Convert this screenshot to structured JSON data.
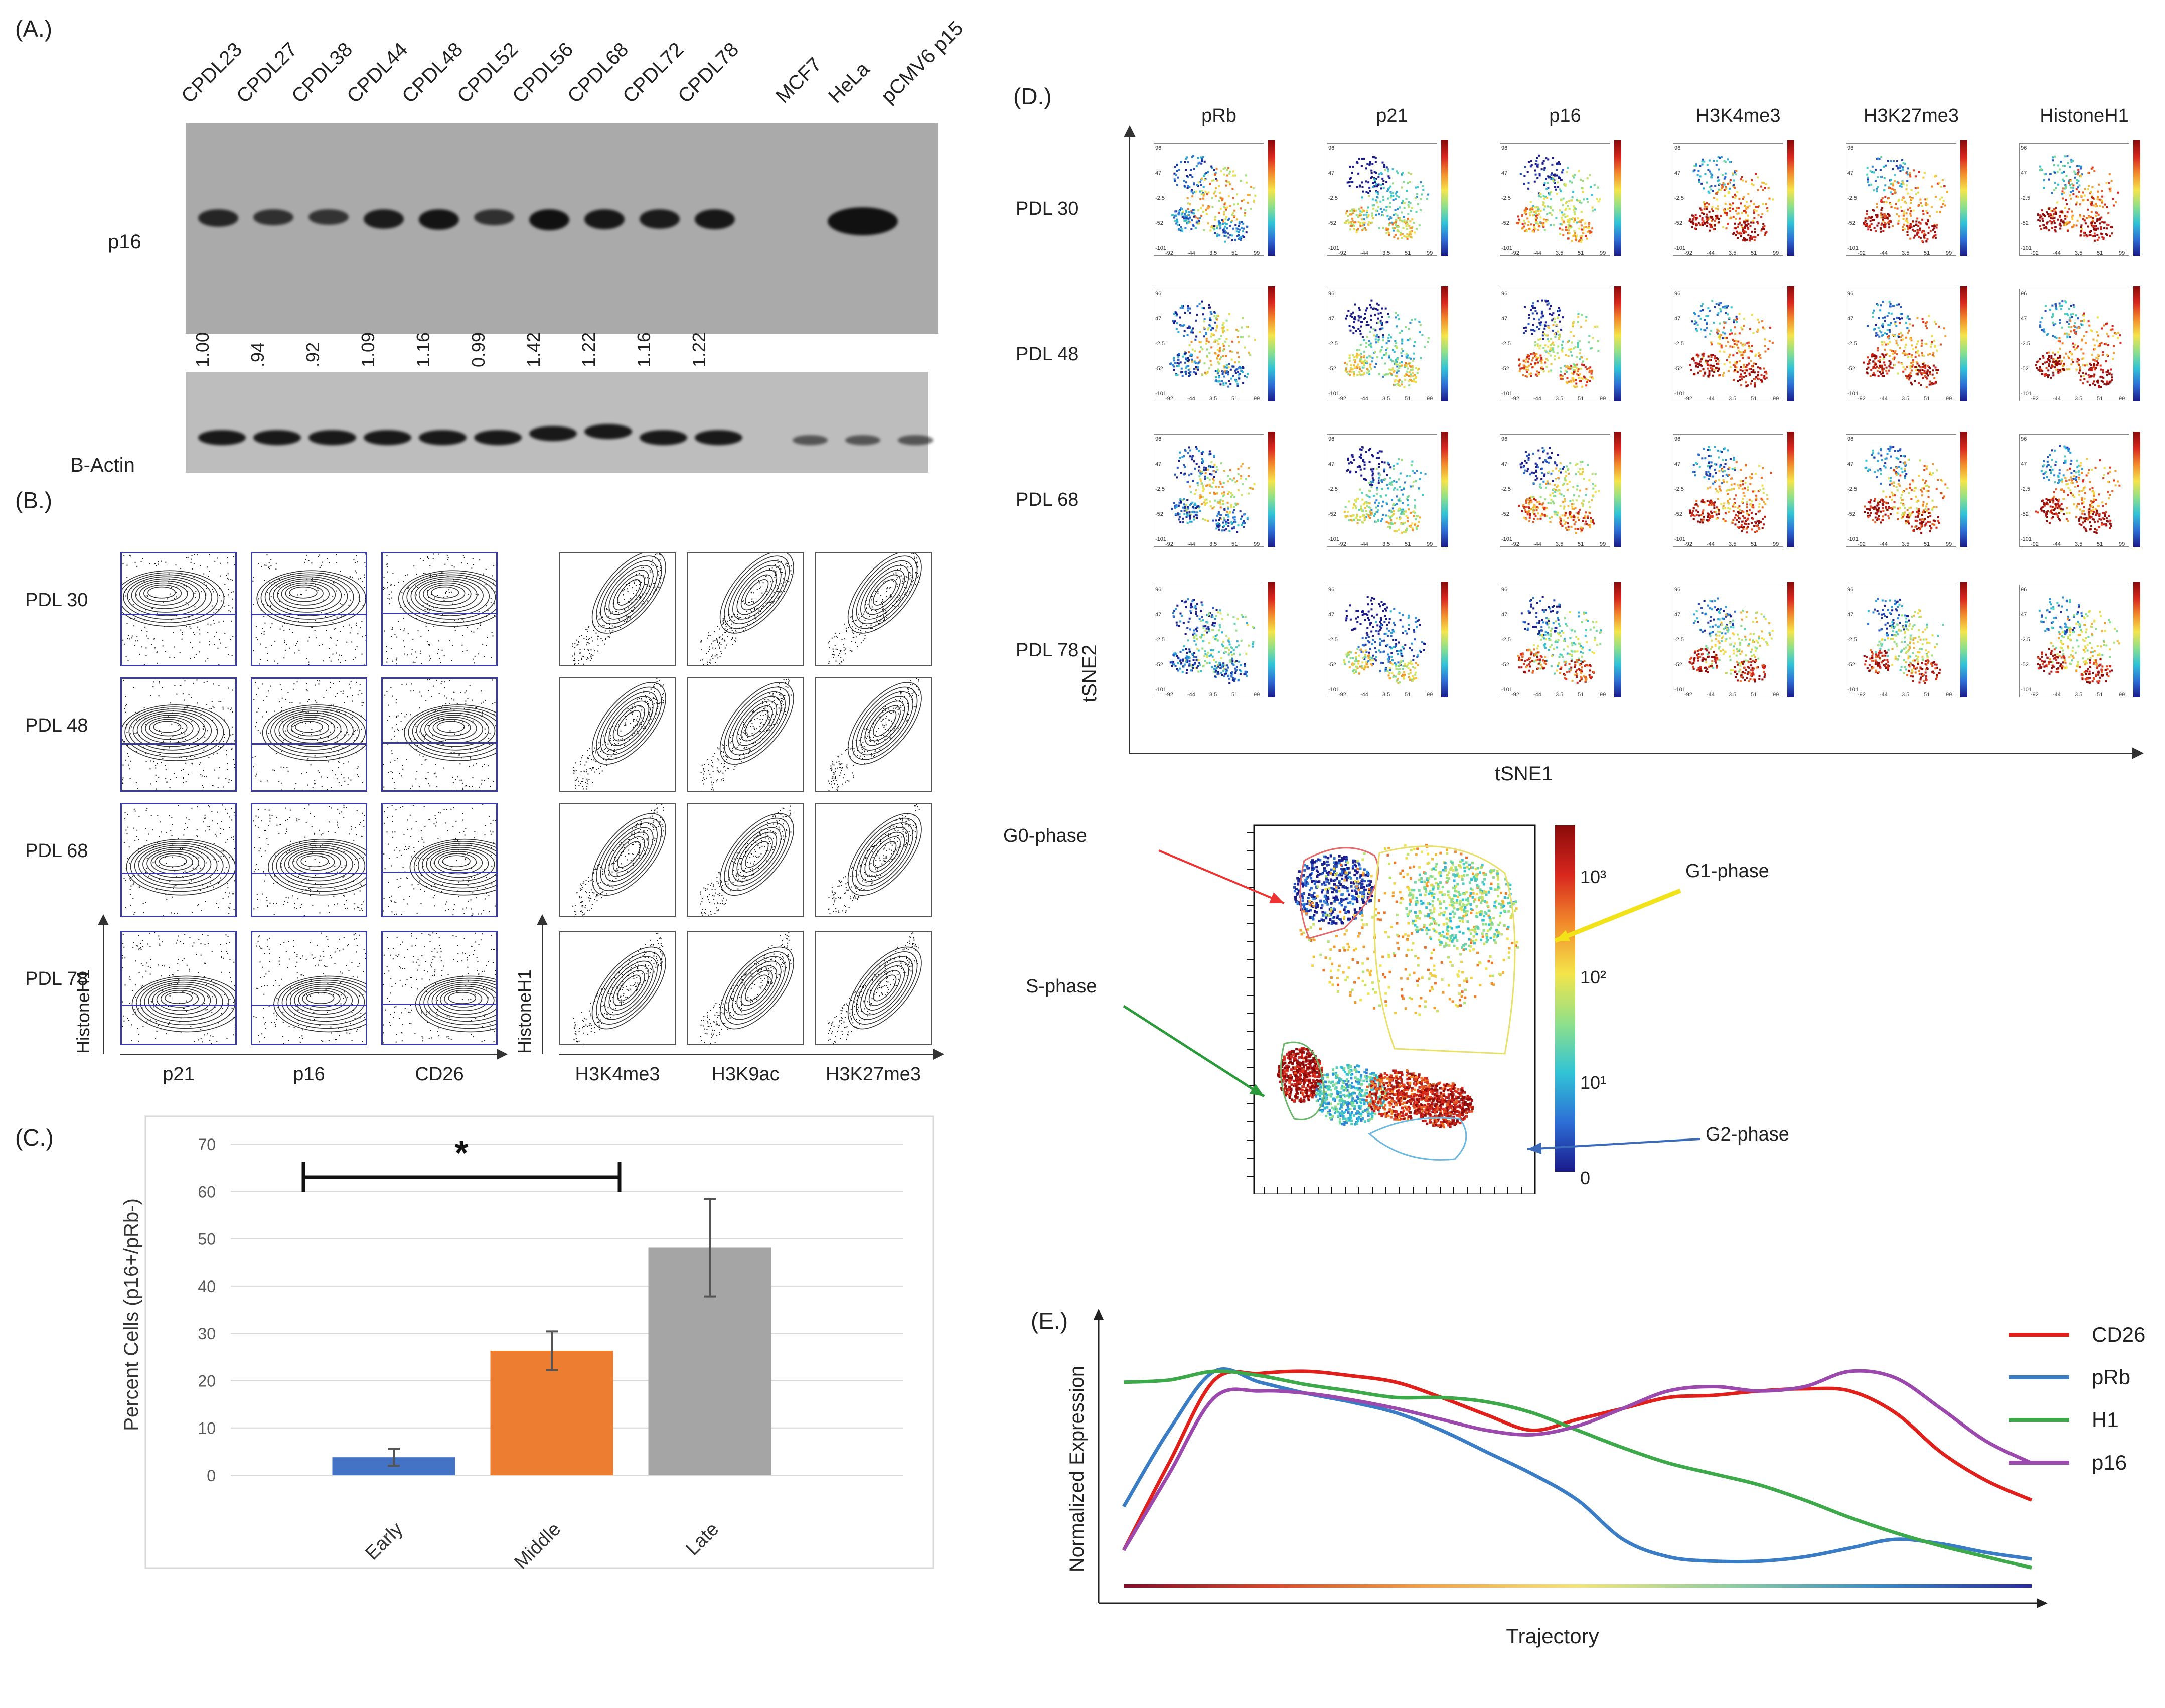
{
  "panels": {
    "a": "(A.)",
    "b": "(B.)",
    "c": "(C.)",
    "d": "(D.)",
    "e": "(E.)"
  },
  "panel_a": {
    "lanes": [
      "CPDL23",
      "CPDL27",
      "CPDL38",
      "CPDL44",
      "CPDL48",
      "CPDL52",
      "CPDL56",
      "CPDL68",
      "CPDL72",
      "CPDL78",
      "MCF7",
      "HeLa",
      "pCMV6 p15"
    ],
    "ratios": [
      "1.00",
      ".94",
      ".92",
      "1.09",
      "1.16",
      "0.99",
      "1.42",
      "1.22",
      "1.16",
      "1.22"
    ],
    "p16_label": "p16",
    "actin_label": "B-Actin"
  },
  "panel_b": {
    "rows": [
      "PDL 30",
      "PDL 48",
      "PDL 68",
      "PDL 78"
    ],
    "left_cols": [
      "p21",
      "p16",
      "CD26"
    ],
    "right_cols": [
      "H3K4me3",
      "H3K9ac",
      "H3K27me3"
    ],
    "ylabel": "HistoneH1"
  },
  "panel_d": {
    "cols": [
      "pRb",
      "p21",
      "p16",
      "H3K4me3",
      "H3K27me3",
      "HistoneH1"
    ],
    "rows": [
      "PDL 30",
      "PDL 48",
      "PDL 68",
      "PDL 78"
    ],
    "xlabel": "tSNE1",
    "ylabel": "tSNE2",
    "ticks_x": [
      "-92",
      "-44",
      "3.5",
      "51",
      "99"
    ],
    "ticks_y": [
      "96",
      "47",
      "-2.5",
      "-52",
      "-101"
    ],
    "phases": {
      "g0": "G0-phase",
      "g1": "G1-phase",
      "s": "S-phase",
      "g2": "G2-phase"
    },
    "colorbar": [
      "10³",
      "10²",
      "10¹",
      "0"
    ]
  },
  "chart_data": [
    {
      "type": "bar",
      "title": "",
      "categories": [
        "Early",
        "Middle",
        "Late"
      ],
      "values": [
        3.8,
        26.3,
        48.1
      ],
      "errors": [
        1.8,
        4.1,
        10.3
      ],
      "colors": [
        "#4472c4",
        "#ed7d31",
        "#a5a5a5"
      ],
      "ylabel": "Percent Cells (p16+/pRb-)",
      "xlabel": "",
      "ylim": [
        0,
        70
      ],
      "yticks": [
        "0",
        "10",
        "20",
        "30",
        "40",
        "50",
        "60",
        "70"
      ],
      "significance": "*",
      "grid": true
    },
    {
      "type": "line",
      "title": "",
      "xlabel": "Trajectory",
      "ylabel": "Normalized Expression",
      "x": [
        0,
        0.05,
        0.1,
        0.15,
        0.2,
        0.25,
        0.3,
        0.35,
        0.4,
        0.45,
        0.5,
        0.55,
        0.6,
        0.65,
        0.7,
        0.75,
        0.8,
        0.85,
        0.9,
        0.95,
        1
      ],
      "series": [
        {
          "name": "CD26",
          "color": "#e0201b",
          "values": [
            0.15,
            0.55,
            0.93,
            0.96,
            0.97,
            0.95,
            0.92,
            0.85,
            0.77,
            0.7,
            0.75,
            0.8,
            0.85,
            0.86,
            0.88,
            0.89,
            0.88,
            0.78,
            0.6,
            0.47,
            0.38
          ]
        },
        {
          "name": "pRb",
          "color": "#3b7dc4",
          "values": [
            0.35,
            0.7,
            0.97,
            0.92,
            0.87,
            0.83,
            0.78,
            0.7,
            0.6,
            0.5,
            0.38,
            0.2,
            0.12,
            0.1,
            0.1,
            0.12,
            0.16,
            0.2,
            0.18,
            0.14,
            0.11
          ]
        },
        {
          "name": "H1",
          "color": "#3ea94a",
          "values": [
            0.92,
            0.93,
            0.97,
            0.95,
            0.91,
            0.88,
            0.85,
            0.85,
            0.83,
            0.78,
            0.7,
            0.62,
            0.55,
            0.5,
            0.45,
            0.38,
            0.3,
            0.23,
            0.17,
            0.12,
            0.07
          ]
        },
        {
          "name": "p16",
          "color": "#9b49ad",
          "values": [
            0.15,
            0.5,
            0.85,
            0.88,
            0.87,
            0.84,
            0.8,
            0.75,
            0.7,
            0.68,
            0.72,
            0.8,
            0.88,
            0.9,
            0.88,
            0.9,
            0.97,
            0.94,
            0.8,
            0.65,
            0.55
          ]
        }
      ]
    }
  ]
}
